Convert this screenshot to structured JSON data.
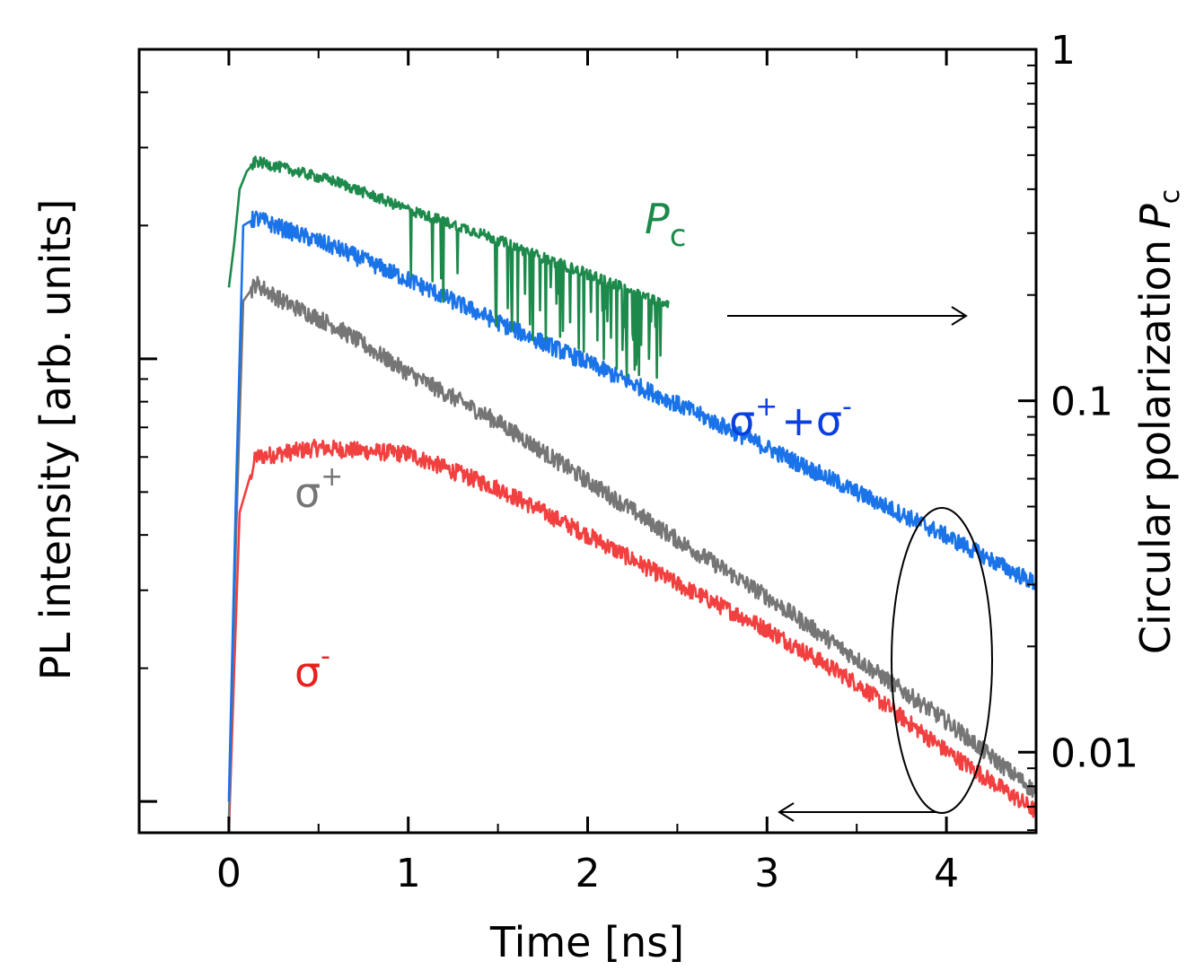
{
  "chart_data": {
    "type": "line",
    "title": "",
    "xlabel": "Time [ns]",
    "ylabel_left": "PL intensity [arb. units]",
    "ylabel_right": "Circular polarization",
    "ylabel_right_symbol": "P",
    "ylabel_right_sub": "c",
    "xlim": [
      -0.5,
      4.5
    ],
    "x_ticks": [
      0,
      1,
      2,
      3,
      4
    ],
    "x_tick_labels": [
      "0",
      "1",
      "2",
      "3",
      "4"
    ],
    "y_right_scale": "log",
    "y_right_lim": [
      0.0059,
      1
    ],
    "y_right_ticks": [
      0.01,
      0.1,
      1
    ],
    "y_right_tick_labels": [
      "0.01",
      "0.1",
      "1"
    ],
    "y_left_scale": "log",
    "y_left_lim": [
      0.85,
      50
    ],
    "series": [
      {
        "name": "sigma_plus_minus",
        "label_main": "σ",
        "label_sup1": "+",
        "label_mid": "+σ",
        "label_sup2": "-",
        "color": "#1a73e8",
        "axis": "left",
        "x": [
          0.0,
          0.04,
          0.08,
          0.15,
          0.3,
          0.6,
          1.0,
          1.5,
          2.0,
          2.5,
          3.0,
          3.5,
          4.0,
          4.5
        ],
        "values": [
          1.0,
          5,
          20.0,
          20.8,
          19.7,
          17.8,
          15.1,
          12.1,
          9.8,
          7.9,
          6.3,
          5.0,
          3.98,
          3.1
        ]
      },
      {
        "name": "sigma_plus",
        "label_main": "σ",
        "label_sup": "+",
        "color": "#757575",
        "axis": "left",
        "x": [
          0.0,
          0.04,
          0.08,
          0.15,
          0.3,
          0.6,
          1.0,
          1.5,
          2.0,
          2.5,
          3.0,
          3.5,
          4.0,
          4.5
        ],
        "values": [
          0.9,
          4,
          13.5,
          14.8,
          13.5,
          11.8,
          9.3,
          7.2,
          5.3,
          3.9,
          2.9,
          2.1,
          1.52,
          1.05
        ]
      },
      {
        "name": "sigma_minus",
        "label_main": "σ",
        "label_sup": "-",
        "color": "#f23f3f",
        "axis": "left",
        "x": [
          0.0,
          0.03,
          0.06,
          0.15,
          0.5,
          1.0,
          1.5,
          2.0,
          2.5,
          3.0,
          3.5,
          4.0,
          4.5
        ],
        "values": [
          0.85,
          2.0,
          4.5,
          6.0,
          6.3,
          6.1,
          5.1,
          4.0,
          3.1,
          2.45,
          1.85,
          1.3,
          0.95
        ]
      },
      {
        "name": "Pc",
        "label_main": "P",
        "label_sub": "c",
        "color": "#1d8a4c",
        "axis": "right",
        "x": [
          0.0,
          0.03,
          0.06,
          0.1,
          0.15,
          0.3,
          0.6,
          1.0,
          1.4,
          1.8,
          2.1,
          2.3,
          2.45
        ],
        "values": [
          0.21,
          0.28,
          0.4,
          0.45,
          0.48,
          0.46,
          0.42,
          0.35,
          0.3,
          0.25,
          0.22,
          0.2,
          0.19
        ]
      }
    ],
    "annotations": [
      {
        "type": "arrow",
        "text": "",
        "direction": "right",
        "points_to": "right axis (Pc)"
      },
      {
        "type": "arrow",
        "text": "",
        "direction": "left",
        "points_to": "left axis (PL intensity)"
      },
      {
        "type": "ellipse",
        "text": "",
        "around": "t ≈ 4 ns"
      }
    ]
  }
}
